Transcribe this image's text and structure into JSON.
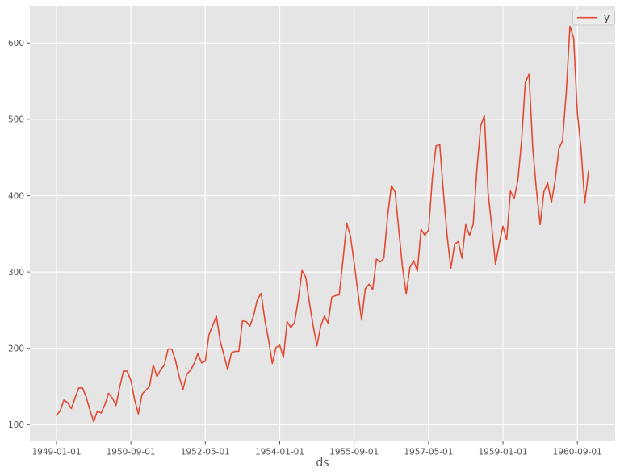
{
  "colors": {
    "figure_bg": "#ffffff",
    "plot_bg": "#e5e5e5",
    "grid": "#ffffff",
    "line": "#e24a33",
    "text": "#555555",
    "tick": "#555555",
    "legend_bg": "#ebebeb",
    "legend_border": "#cccccc",
    "legend_text": "#3d3d3d"
  },
  "chart_data": {
    "type": "line",
    "title": "",
    "xlabel": "ds",
    "ylabel": "",
    "grid": true,
    "legend_position": "upper right",
    "x_tick_labels": [
      "1949-01-01",
      "1950-09-01",
      "1952-05-01",
      "1954-01-01",
      "1955-09-01",
      "1957-05-01",
      "1959-01-01",
      "1960-09-01"
    ],
    "x_ticks": [
      {
        "label": "1949-01-01",
        "month_index": 0
      },
      {
        "label": "1950-09-01",
        "month_index": 20
      },
      {
        "label": "1952-05-01",
        "month_index": 40
      },
      {
        "label": "1954-01-01",
        "month_index": 60
      },
      {
        "label": "1955-09-01",
        "month_index": 80
      },
      {
        "label": "1957-05-01",
        "month_index": 100
      },
      {
        "label": "1959-01-01",
        "month_index": 120
      },
      {
        "label": "1960-09-01",
        "month_index": 140
      }
    ],
    "y_ticks": [
      100,
      200,
      300,
      400,
      500,
      600
    ],
    "xlim_month_index": [
      -7.15,
      150.15
    ],
    "ylim": [
      78.1,
      647.9
    ],
    "x": [
      "1949-01-01",
      "1949-02-01",
      "1949-03-01",
      "1949-04-01",
      "1949-05-01",
      "1949-06-01",
      "1949-07-01",
      "1949-08-01",
      "1949-09-01",
      "1949-10-01",
      "1949-11-01",
      "1949-12-01",
      "1950-01-01",
      "1950-02-01",
      "1950-03-01",
      "1950-04-01",
      "1950-05-01",
      "1950-06-01",
      "1950-07-01",
      "1950-08-01",
      "1950-09-01",
      "1950-10-01",
      "1950-11-01",
      "1950-12-01",
      "1951-01-01",
      "1951-02-01",
      "1951-03-01",
      "1951-04-01",
      "1951-05-01",
      "1951-06-01",
      "1951-07-01",
      "1951-08-01",
      "1951-09-01",
      "1951-10-01",
      "1951-11-01",
      "1951-12-01",
      "1952-01-01",
      "1952-02-01",
      "1952-03-01",
      "1952-04-01",
      "1952-05-01",
      "1952-06-01",
      "1952-07-01",
      "1952-08-01",
      "1952-09-01",
      "1952-10-01",
      "1952-11-01",
      "1952-12-01",
      "1953-01-01",
      "1953-02-01",
      "1953-03-01",
      "1953-04-01",
      "1953-05-01",
      "1953-06-01",
      "1953-07-01",
      "1953-08-01",
      "1953-09-01",
      "1953-10-01",
      "1953-11-01",
      "1953-12-01",
      "1954-01-01",
      "1954-02-01",
      "1954-03-01",
      "1954-04-01",
      "1954-05-01",
      "1954-06-01",
      "1954-07-01",
      "1954-08-01",
      "1954-09-01",
      "1954-10-01",
      "1954-11-01",
      "1954-12-01",
      "1955-01-01",
      "1955-02-01",
      "1955-03-01",
      "1955-04-01",
      "1955-05-01",
      "1955-06-01",
      "1955-07-01",
      "1955-08-01",
      "1955-09-01",
      "1955-10-01",
      "1955-11-01",
      "1955-12-01",
      "1956-01-01",
      "1956-02-01",
      "1956-03-01",
      "1956-04-01",
      "1956-05-01",
      "1956-06-01",
      "1956-07-01",
      "1956-08-01",
      "1956-09-01",
      "1956-10-01",
      "1956-11-01",
      "1956-12-01",
      "1957-01-01",
      "1957-02-01",
      "1957-03-01",
      "1957-04-01",
      "1957-05-01",
      "1957-06-01",
      "1957-07-01",
      "1957-08-01",
      "1957-09-01",
      "1957-10-01",
      "1957-11-01",
      "1957-12-01",
      "1958-01-01",
      "1958-02-01",
      "1958-03-01",
      "1958-04-01",
      "1958-05-01",
      "1958-06-01",
      "1958-07-01",
      "1958-08-01",
      "1958-09-01",
      "1958-10-01",
      "1958-11-01",
      "1958-12-01",
      "1959-01-01",
      "1959-02-01",
      "1959-03-01",
      "1959-04-01",
      "1959-05-01",
      "1959-06-01",
      "1959-07-01",
      "1959-08-01",
      "1959-09-01",
      "1959-10-01",
      "1959-11-01",
      "1959-12-01",
      "1960-01-01",
      "1960-02-01",
      "1960-03-01",
      "1960-04-01",
      "1960-05-01",
      "1960-06-01",
      "1960-07-01",
      "1960-08-01",
      "1960-09-01",
      "1960-10-01",
      "1960-11-01",
      "1960-12-01"
    ],
    "series": [
      {
        "name": "y",
        "color": "#e24a33",
        "values": [
          112,
          118,
          132,
          129,
          121,
          135,
          148,
          148,
          136,
          119,
          104,
          118,
          115,
          126,
          141,
          135,
          125,
          149,
          170,
          170,
          158,
          133,
          114,
          140,
          145,
          150,
          178,
          163,
          172,
          178,
          199,
          199,
          184,
          162,
          146,
          166,
          171,
          180,
          193,
          181,
          183,
          218,
          230,
          242,
          209,
          191,
          172,
          194,
          196,
          196,
          236,
          235,
          229,
          243,
          264,
          272,
          237,
          211,
          180,
          201,
          204,
          188,
          235,
          227,
          234,
          264,
          302,
          293,
          259,
          229,
          203,
          229,
          242,
          233,
          267,
          269,
          270,
          315,
          364,
          347,
          312,
          274,
          237,
          278,
          284,
          277,
          317,
          313,
          318,
          374,
          413,
          405,
          355,
          306,
          271,
          306,
          315,
          301,
          356,
          348,
          355,
          422,
          465,
          467,
          404,
          347,
          305,
          336,
          340,
          318,
          362,
          348,
          363,
          435,
          491,
          505,
          404,
          359,
          310,
          337,
          360,
          342,
          406,
          396,
          420,
          472,
          548,
          559,
          463,
          407,
          362,
          405,
          417,
          391,
          419,
          461,
          472,
          535,
          622,
          606,
          508,
          461,
          390,
          432
        ]
      }
    ]
  }
}
